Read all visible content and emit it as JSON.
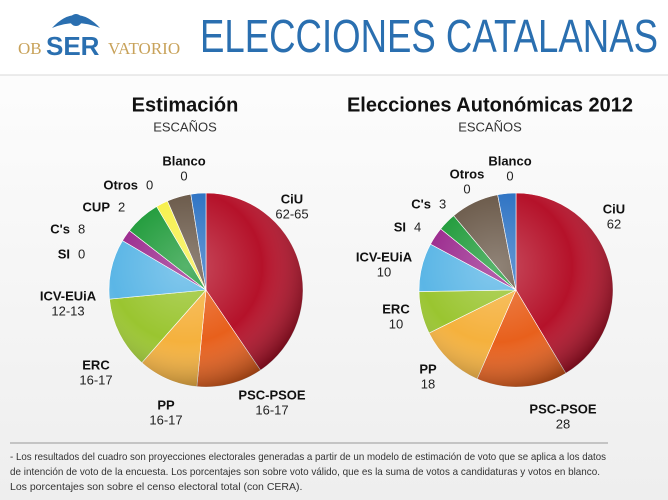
{
  "header": {
    "logo": {
      "left": "OB",
      "middle": "SER",
      "right": "VATORIO"
    },
    "title": "ELECCIONES CATALANAS"
  },
  "chart_data": [
    {
      "type": "pie",
      "title": "Estimación",
      "subtitle": "ESCAÑOS",
      "categories": [
        "CiU",
        "PSC-PSOE",
        "PP",
        "ERC",
        "ICV-EUiA",
        "SI",
        "C's",
        "CUP",
        "Otros",
        "Blanco"
      ],
      "values": [
        40.5,
        11,
        10,
        12,
        10,
        2,
        6,
        2,
        4,
        2.5
      ],
      "seats": [
        "62-65",
        "16-17",
        "16-17",
        "16-17",
        "12-13",
        0,
        8,
        2,
        0,
        0
      ],
      "colors": [
        "#b5122a",
        "#e8601c",
        "#f5b13d",
        "#9ac530",
        "#5bb6e6",
        "#9b2a8e",
        "#1f9b3a",
        "#f7f04a",
        "#6b5a4a",
        "#2f74c4"
      ]
    },
    {
      "type": "pie",
      "title": "Elecciones Autonómicas 2012",
      "subtitle": "ESCAÑOS",
      "categories": [
        "CiU",
        "PSC-PSOE",
        "PP",
        "ERC",
        "ICV-EUiA",
        "SI",
        "C's",
        "Otros",
        "Blanco"
      ],
      "values": [
        41,
        15,
        11,
        7,
        8,
        3,
        3,
        8,
        3
      ],
      "seats": [
        62,
        28,
        18,
        10,
        10,
        4,
        3,
        0,
        0
      ],
      "colors": [
        "#b5122a",
        "#e8601c",
        "#f5b13d",
        "#9ac530",
        "#5bb6e6",
        "#9b2a8e",
        "#1f9b3a",
        "#6b5a4a",
        "#2f74c4"
      ]
    }
  ],
  "footnote": [
    "- Los resultados del cuadro son proyecciones electorales generadas a partir de un modelo de estimación de voto que se aplica a los datos",
    "de intención de voto de la encuesta. Los porcentajes son sobre voto válido, que es la suma de votos a candidaturas y votos en blanco.",
    "Los porcentajes son sobre el censo electoral total (con CERA)."
  ]
}
